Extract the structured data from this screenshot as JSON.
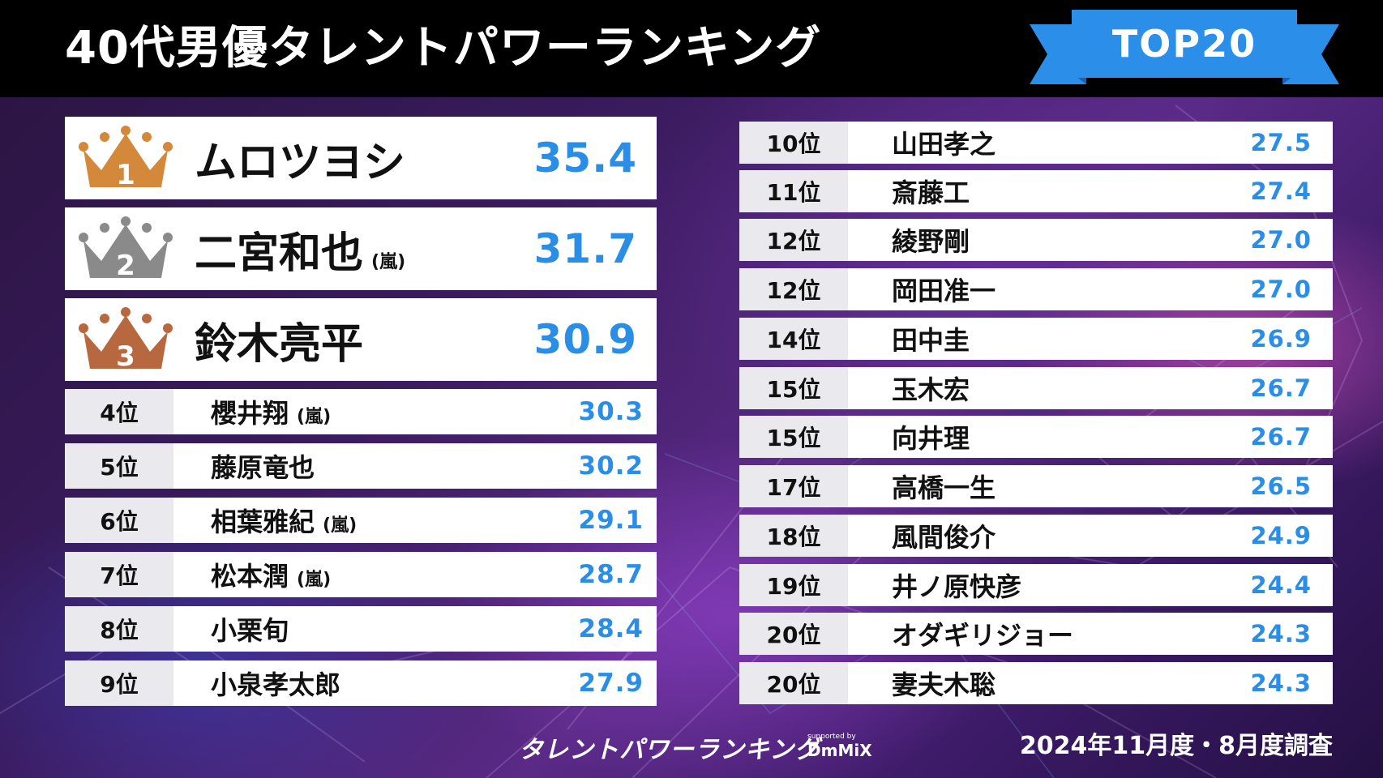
{
  "header": {
    "title": "40代男優タレントパワーランキング",
    "badge": "TOP20"
  },
  "top3": [
    {
      "rank": "1",
      "name": "ムロツヨシ",
      "group": "",
      "score": "35.4",
      "crown_color": "#d4893a"
    },
    {
      "rank": "2",
      "name": "二宮和也",
      "group": "(嵐)",
      "score": "31.7",
      "crown_color": "#8a8a8a"
    },
    {
      "rank": "3",
      "name": "鈴木亮平",
      "group": "",
      "score": "30.9",
      "crown_color": "#b8683e"
    }
  ],
  "left_list": [
    {
      "rank": "4位",
      "name": "櫻井翔",
      "group": "(嵐)",
      "score": "30.3"
    },
    {
      "rank": "5位",
      "name": "藤原竜也",
      "group": "",
      "score": "30.2"
    },
    {
      "rank": "6位",
      "name": "相葉雅紀",
      "group": "(嵐)",
      "score": "29.1"
    },
    {
      "rank": "7位",
      "name": "松本潤",
      "group": "(嵐)",
      "score": "28.7"
    },
    {
      "rank": "8位",
      "name": "小栗旬",
      "group": "",
      "score": "28.4"
    },
    {
      "rank": "9位",
      "name": "小泉孝太郎",
      "group": "",
      "score": "27.9"
    }
  ],
  "right_list": [
    {
      "rank": "10位",
      "name": "山田孝之",
      "score": "27.5"
    },
    {
      "rank": "11位",
      "name": "斎藤工",
      "score": "27.4"
    },
    {
      "rank": "12位",
      "name": "綾野剛",
      "score": "27.0"
    },
    {
      "rank": "12位",
      "name": "岡田准一",
      "score": "27.0"
    },
    {
      "rank": "14位",
      "name": "田中圭",
      "score": "26.9"
    },
    {
      "rank": "15位",
      "name": "玉木宏",
      "score": "26.7"
    },
    {
      "rank": "15位",
      "name": "向井理",
      "score": "26.7"
    },
    {
      "rank": "17位",
      "name": "高橋一生",
      "score": "26.5"
    },
    {
      "rank": "18位",
      "name": "風間俊介",
      "score": "24.9"
    },
    {
      "rank": "19位",
      "name": "井ノ原快彦",
      "score": "24.4"
    },
    {
      "rank": "20位",
      "name": "オダギリジョー",
      "score": "24.3"
    },
    {
      "rank": "20位",
      "name": "妻夫木聡",
      "score": "24.3"
    }
  ],
  "footer": {
    "logo": "タレントパワーランキング",
    "sponsor_small": "supported by",
    "sponsor_brand": "DmMiX",
    "survey": "2024年11月度・8月度調査"
  },
  "colors": {
    "accent": "#2a8de6",
    "ribbon": "#2b8ee8",
    "ribbon_dark": "#1a5fb0"
  }
}
